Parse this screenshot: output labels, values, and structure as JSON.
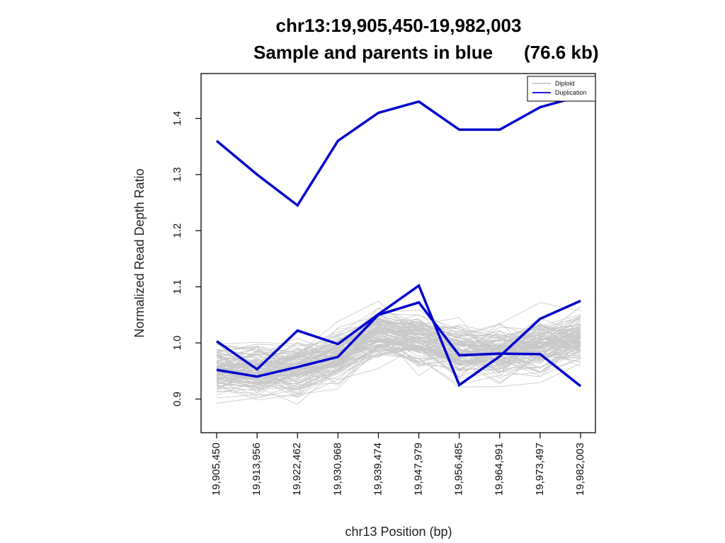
{
  "chart_data": {
    "type": "line",
    "title": "chr13:19,905,450-19,982,003",
    "subtitle": "Sample and parents in blue",
    "subtitle_size": "(76.6 kb)",
    "xlabel": "chr13 Position (bp)",
    "ylabel": "Normalized Read Depth Ratio",
    "x_tick_labels": [
      "19,905,450",
      "19,913,956",
      "19,922,462",
      "19,930,968",
      "19,939,474",
      "19,947,979",
      "19,956,485",
      "19,964,991",
      "19,973,497",
      "19,982,003"
    ],
    "y_ticks": [
      0.9,
      1.0,
      1.1,
      1.2,
      1.3,
      1.4
    ],
    "y_tick_labels": [
      "0.9",
      "1.0",
      "1.1",
      "1.2",
      "1.3",
      "1.4"
    ],
    "ylim": [
      0.84,
      1.48
    ],
    "legend": {
      "position": "top-right",
      "entries": [
        {
          "label": "Diploid",
          "color": "#bebebe"
        },
        {
          "label": "Duplication",
          "color": "#0000cd"
        }
      ]
    },
    "colors": {
      "diploid": "#c8c8c8",
      "duplication": "#0000cd"
    },
    "highlighted_series": [
      {
        "values": [
          1.36,
          1.3,
          1.245,
          1.36,
          1.41,
          1.43,
          1.38,
          1.38,
          1.42,
          1.44
        ]
      },
      {
        "values": [
          1.003,
          0.953,
          1.022,
          0.998,
          1.051,
          1.102,
          0.925,
          0.976,
          1.043,
          1.075
        ]
      },
      {
        "values": [
          0.952,
          0.94,
          0.957,
          0.975,
          1.05,
          1.072,
          0.978,
          0.981,
          0.98,
          0.923
        ]
      }
    ],
    "background_series_summary": {
      "count": 120,
      "mean": [
        0.955,
        0.95,
        0.955,
        0.975,
        1.015,
        1.01,
        0.985,
        0.98,
        0.995,
        1.01
      ],
      "spread": [
        0.035,
        0.035,
        0.035,
        0.035,
        0.03,
        0.035,
        0.035,
        0.035,
        0.035,
        0.035
      ]
    }
  }
}
